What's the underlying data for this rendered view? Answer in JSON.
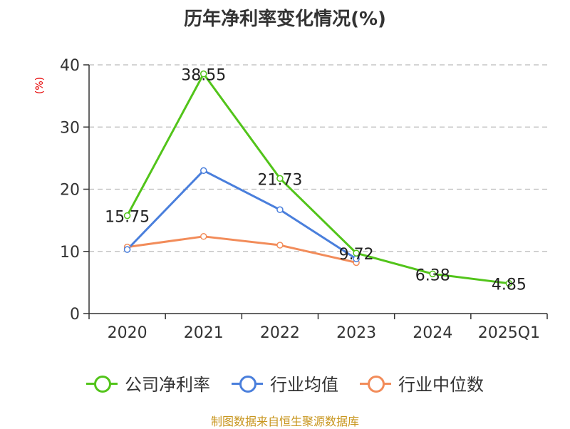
{
  "chart_data": {
    "type": "line",
    "title": "历年净利率变化情况(%)",
    "ylabel": "(%)",
    "categories": [
      "2020",
      "2021",
      "2022",
      "2023",
      "2024",
      "2025Q1"
    ],
    "ylim": [
      0,
      40
    ],
    "yticks": [
      "0",
      "10",
      "20",
      "30",
      "40"
    ],
    "grid": "horizontal-dashed",
    "legend_position": "bottom",
    "series": [
      {
        "name": "公司净利率",
        "color": "#52c41a",
        "values": [
          15.75,
          38.55,
          21.73,
          9.72,
          6.38,
          4.85
        ],
        "labels": [
          "15.75",
          "38.55",
          "21.73",
          "9.72",
          "6.38",
          "4.85"
        ]
      },
      {
        "name": "行业均值",
        "color": "#4a7fdc",
        "values": [
          10.3,
          23.0,
          16.7,
          8.8,
          null,
          null
        ]
      },
      {
        "name": "行业中位数",
        "color": "#f28c5a",
        "values": [
          10.7,
          12.4,
          11.0,
          8.2,
          null,
          null
        ]
      }
    ]
  },
  "source": "制图数据来自恒生聚源数据库"
}
